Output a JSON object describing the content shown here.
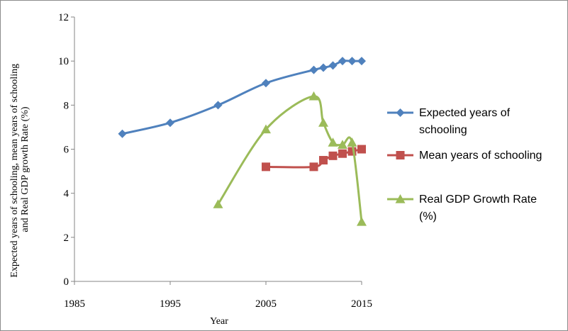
{
  "chart_data": {
    "type": "line",
    "title": "",
    "xlabel": "Year",
    "ylabel_lines": [
      "Expected years of schooling, mean years of schooling",
      "and Real GDP growth Rate (%)"
    ],
    "xlim": [
      1985,
      2015
    ],
    "ylim": [
      0,
      12
    ],
    "x_ticks": [
      1985,
      1995,
      2005,
      2015
    ],
    "y_ticks": [
      0,
      2,
      4,
      6,
      8,
      10,
      12
    ],
    "grid": false,
    "legend_position": "right",
    "series": [
      {
        "name": "Expected years of schooling",
        "legend_lines": [
          "Expected years of",
          "schooling"
        ],
        "color": "#4F81BD",
        "marker": "diamond",
        "smooth": true,
        "x": [
          1990,
          1995,
          2000,
          2005,
          2010,
          2011,
          2012,
          2013,
          2014,
          2015
        ],
        "values": [
          6.7,
          7.2,
          8.0,
          9.0,
          9.6,
          9.7,
          9.8,
          10.0,
          10.0,
          10.0
        ]
      },
      {
        "name": "Mean years of schooling",
        "legend_lines": [
          "Mean years of schooling"
        ],
        "color": "#C0504D",
        "marker": "square",
        "smooth": true,
        "x": [
          2005,
          2010,
          2011,
          2012,
          2013,
          2014,
          2015
        ],
        "values": [
          5.2,
          5.2,
          5.5,
          5.7,
          5.8,
          5.9,
          6.0
        ]
      },
      {
        "name": "Real GDP Growth Rate (%)",
        "legend_lines": [
          "Real GDP Growth Rate",
          "(%)"
        ],
        "color": "#9BBB59",
        "marker": "triangle",
        "smooth": true,
        "x": [
          2000,
          2005,
          2010,
          2011,
          2012,
          2013,
          2014,
          2015
        ],
        "values": [
          3.5,
          6.9,
          8.4,
          7.2,
          6.3,
          6.2,
          6.3,
          2.7
        ]
      }
    ]
  }
}
